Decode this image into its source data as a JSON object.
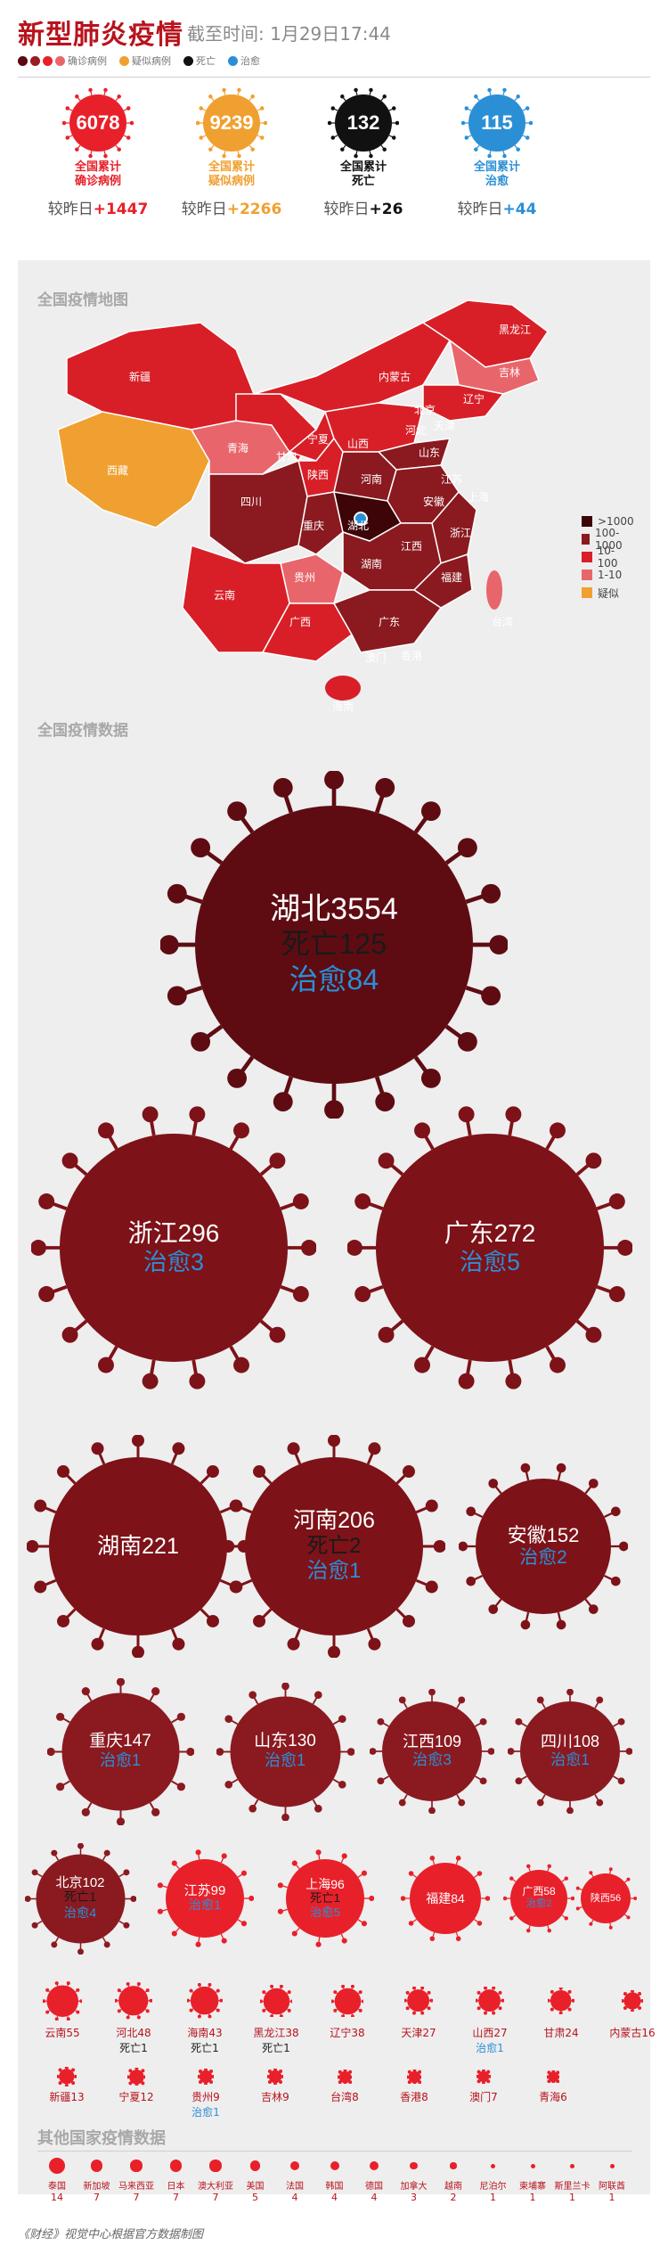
{
  "header": {
    "title": "新型肺炎疫情",
    "subtitle": "截至时间: 1月29日17:44",
    "legend": [
      {
        "label": "确诊病例",
        "colors": [
          "#5a0a10",
          "#9b1b22",
          "#e8202a",
          "#e8666b"
        ]
      },
      {
        "label": "疑似病例",
        "colors": [
          "#f0a030"
        ]
      },
      {
        "label": "死亡",
        "colors": [
          "#111111"
        ]
      },
      {
        "label": "治愈",
        "colors": [
          "#2b8fd6"
        ]
      }
    ]
  },
  "summary": [
    {
      "value": "6078",
      "label1": "全国累计",
      "label2": "确诊病例",
      "delta_prefix": "较昨日",
      "delta": "+1447",
      "color": "#e8202a"
    },
    {
      "value": "9239",
      "label1": "全国累计",
      "label2": "疑似病例",
      "delta_prefix": "较昨日",
      "delta": "+2266",
      "color": "#f0a030"
    },
    {
      "value": "132",
      "label1": "全国累计",
      "label2": "死亡",
      "delta_prefix": "较昨日",
      "delta": "+26",
      "color": "#111111"
    },
    {
      "value": "115",
      "label1": "全国累计",
      "label2": "治愈",
      "delta_prefix": "较昨日",
      "delta": "+44",
      "color": "#2b8fd6"
    }
  ],
  "map": {
    "title": "全国疫情地图",
    "legend": [
      {
        "label": ">1000",
        "color": "#3d0508"
      },
      {
        "label": "100-1000",
        "color": "#8a1a20"
      },
      {
        "label": "10-100",
        "color": "#d81f27"
      },
      {
        "label": "1-10",
        "color": "#e8666b"
      },
      {
        "label": "疑似",
        "color": "#f0a030"
      }
    ],
    "labels": [
      "黑龙江",
      "吉林",
      "辽宁",
      "内蒙古",
      "北京",
      "天津",
      "河北",
      "新疆",
      "青海",
      "宁夏",
      "甘肃",
      "山西",
      "山东",
      "陕西",
      "河南",
      "江苏",
      "西藏",
      "四川",
      "湖北",
      "安徽",
      "上海",
      "重庆",
      "江西",
      "浙江",
      "贵州",
      "湖南",
      "福建",
      "云南",
      "广西",
      "广东",
      "台湾",
      "澳门",
      "香港",
      "海南"
    ]
  },
  "data_title": "全国疫情数据",
  "chart_data": {
    "type": "bubble",
    "title": "全国疫情数据",
    "provinces": [
      {
        "name": "湖北",
        "confirmed": 3554,
        "dead": 125,
        "cured": 84
      },
      {
        "name": "浙江",
        "confirmed": 296,
        "dead": null,
        "cured": 3
      },
      {
        "name": "广东",
        "confirmed": 272,
        "dead": null,
        "cured": 5
      },
      {
        "name": "湖南",
        "confirmed": 221,
        "dead": null,
        "cured": null
      },
      {
        "name": "河南",
        "confirmed": 206,
        "dead": 2,
        "cured": 1
      },
      {
        "name": "安徽",
        "confirmed": 152,
        "dead": null,
        "cured": 2
      },
      {
        "name": "重庆",
        "confirmed": 147,
        "dead": null,
        "cured": 1
      },
      {
        "name": "山东",
        "confirmed": 130,
        "dead": null,
        "cured": 1
      },
      {
        "name": "江西",
        "confirmed": 109,
        "dead": null,
        "cured": 3
      },
      {
        "name": "四川",
        "confirmed": 108,
        "dead": null,
        "cured": 1
      },
      {
        "name": "北京",
        "confirmed": 102,
        "dead": 1,
        "cured": 4
      },
      {
        "name": "江苏",
        "confirmed": 99,
        "dead": null,
        "cured": 1
      },
      {
        "name": "上海",
        "confirmed": 96,
        "dead": 1,
        "cured": 5
      },
      {
        "name": "福建",
        "confirmed": 84,
        "dead": null,
        "cured": null
      },
      {
        "name": "广西",
        "confirmed": 58,
        "dead": null,
        "cured": 2
      },
      {
        "name": "陕西",
        "confirmed": 56,
        "dead": null,
        "cured": null
      },
      {
        "name": "云南",
        "confirmed": 55,
        "dead": null,
        "cured": null
      },
      {
        "name": "河北",
        "confirmed": 48,
        "dead": 1,
        "cured": null
      },
      {
        "name": "海南",
        "confirmed": 43,
        "dead": 1,
        "cured": null
      },
      {
        "name": "黑龙江",
        "confirmed": 38,
        "dead": 1,
        "cured": null
      },
      {
        "name": "辽宁",
        "confirmed": 38,
        "dead": null,
        "cured": null
      },
      {
        "name": "天津",
        "confirmed": 27,
        "dead": null,
        "cured": null
      },
      {
        "name": "山西",
        "confirmed": 27,
        "dead": null,
        "cured": 1
      },
      {
        "name": "甘肃",
        "confirmed": 24,
        "dead": null,
        "cured": null
      },
      {
        "name": "内蒙古",
        "confirmed": 16,
        "dead": null,
        "cured": null
      },
      {
        "name": "新疆",
        "confirmed": 13,
        "dead": null,
        "cured": null
      },
      {
        "name": "宁夏",
        "confirmed": 12,
        "dead": null,
        "cured": null
      },
      {
        "name": "贵州",
        "confirmed": 9,
        "dead": null,
        "cured": 1
      },
      {
        "name": "吉林",
        "confirmed": 9,
        "dead": null,
        "cured": null
      },
      {
        "name": "台湾",
        "confirmed": 8,
        "dead": null,
        "cured": null
      },
      {
        "name": "香港",
        "confirmed": 8,
        "dead": null,
        "cured": null
      },
      {
        "name": "澳门",
        "confirmed": 7,
        "dead": null,
        "cured": null
      },
      {
        "name": "青海",
        "confirmed": 6,
        "dead": null,
        "cured": null
      }
    ],
    "international": [
      {
        "name": "泰国",
        "confirmed": 14
      },
      {
        "name": "新加坡",
        "confirmed": 7
      },
      {
        "name": "马来西亚",
        "confirmed": 7
      },
      {
        "name": "日本",
        "confirmed": 7
      },
      {
        "name": "澳大利亚",
        "confirmed": 7
      },
      {
        "name": "美国",
        "confirmed": 5
      },
      {
        "name": "法国",
        "confirmed": 4
      },
      {
        "name": "韩国",
        "confirmed": 4
      },
      {
        "name": "德国",
        "confirmed": 4
      },
      {
        "name": "加拿大",
        "confirmed": 3
      },
      {
        "name": "越南",
        "confirmed": 2
      },
      {
        "name": "尼泊尔",
        "confirmed": 1
      },
      {
        "name": "柬埔寨",
        "confirmed": 1
      },
      {
        "name": "斯里兰卡",
        "confirmed": 1
      },
      {
        "name": "阿联酋",
        "confirmed": 1
      }
    ]
  },
  "labels": {
    "dead_prefix": "死亡",
    "cured_prefix": "治愈"
  },
  "intl_title": "其他国家疫情数据",
  "footer": "《财经》视觉中心根据官方数据制图"
}
